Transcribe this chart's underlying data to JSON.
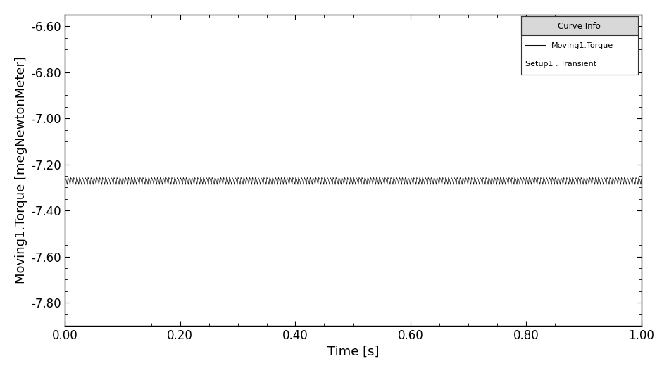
{
  "title": "",
  "xlabel": "Time [s]",
  "ylabel": "Moving1.Torque [megNewtonMeter]",
  "xlim": [
    0.0,
    1.0
  ],
  "ylim": [
    -7.9,
    -6.55
  ],
  "yticks": [
    -7.8,
    -7.6,
    -7.4,
    -7.2,
    -7.0,
    -6.8,
    -6.6
  ],
  "xticks": [
    0.0,
    0.2,
    0.4,
    0.6,
    0.8,
    1.0
  ],
  "mean_torque": -7.27,
  "oscillation_amplitude": 0.012,
  "frequency_hz": 200,
  "duration": 1.0,
  "num_points": 50000,
  "line_color": "#111111",
  "line_width": 0.5,
  "bg_color": "#ffffff",
  "legend_title": "Curve Info",
  "legend_label": "Moving1.Torque",
  "legend_sublabel": "Setup1 : Transient",
  "font_size": 13,
  "tick_font_size": 12
}
